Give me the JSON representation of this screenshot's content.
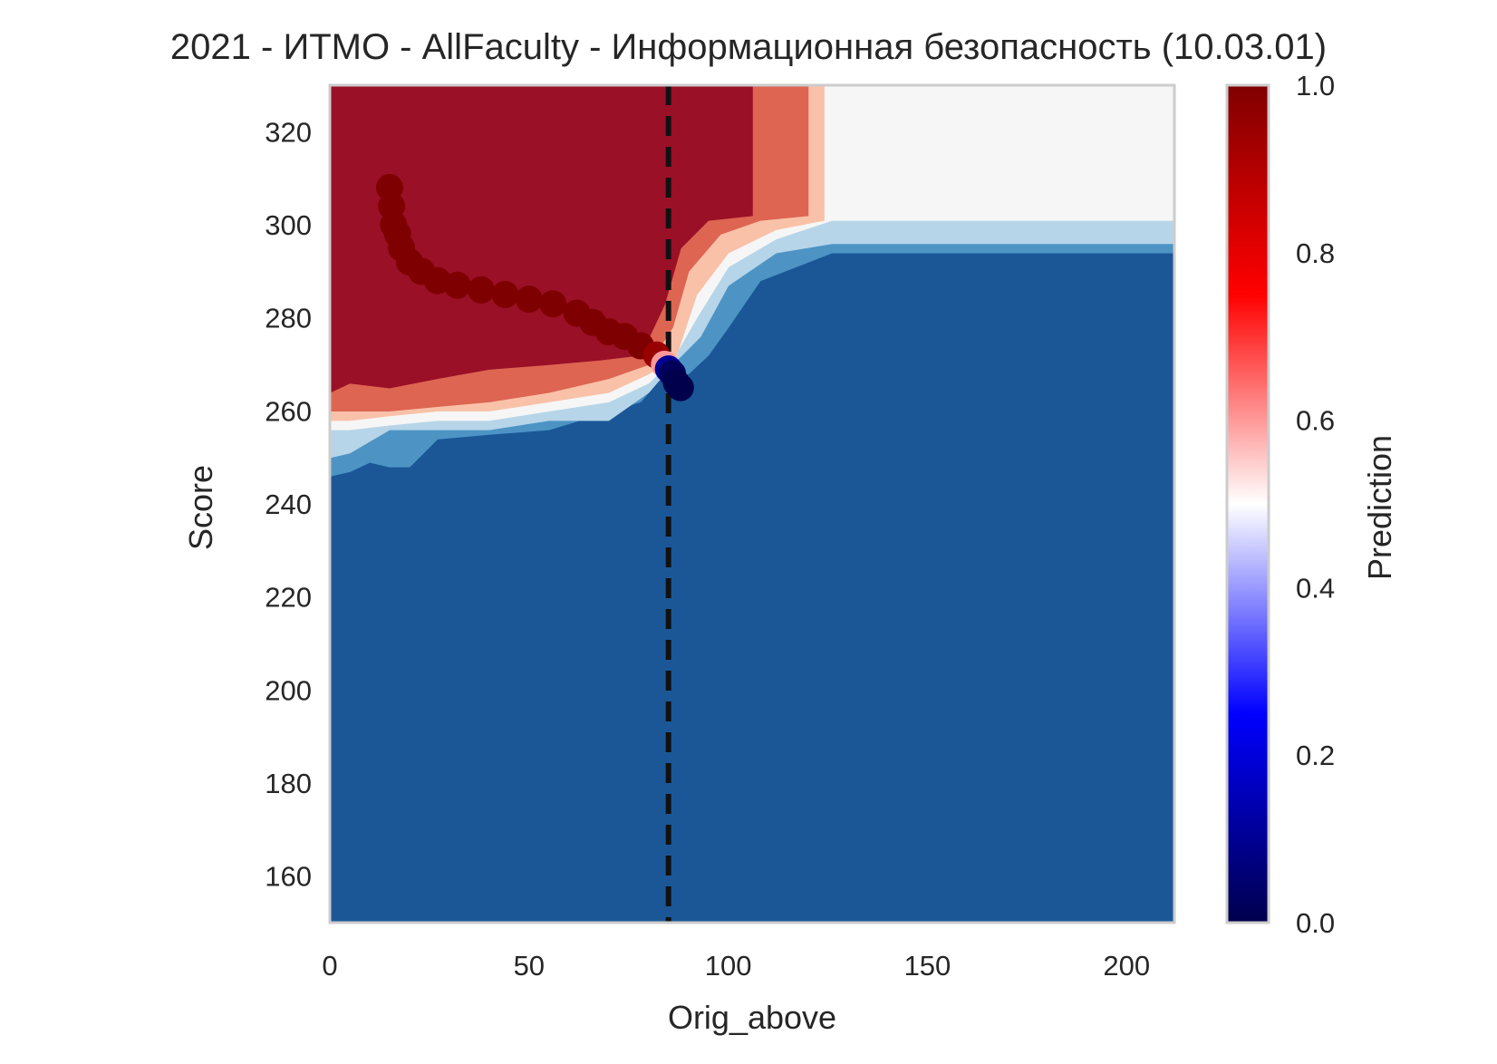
{
  "chart_data": {
    "type": "heatmap",
    "title": "2021 - ИТМО - AllFaculty - Информационная безопасность (10.03.01)",
    "xlabel": "Orig_above",
    "ylabel": "Score",
    "xlim": [
      0,
      212
    ],
    "ylim": [
      150,
      330
    ],
    "x_ticks": [
      0,
      50,
      100,
      150,
      200
    ],
    "y_ticks": [
      160,
      180,
      200,
      220,
      240,
      260,
      280,
      300,
      320
    ],
    "grid": false,
    "colorbar": {
      "label": "Prediction",
      "range": [
        0,
        1
      ],
      "ticks": [
        "0.0",
        "0.2",
        "0.4",
        "0.6",
        "0.8",
        "1.0"
      ],
      "colormap": "seismic",
      "stops": [
        {
          "v": 0.0,
          "color": "#00004c"
        },
        {
          "v": 0.25,
          "color": "#0000ff"
        },
        {
          "v": 0.5,
          "color": "#ffffff"
        },
        {
          "v": 0.75,
          "color": "#ff0000"
        },
        {
          "v": 1.0,
          "color": "#7f0000"
        }
      ]
    },
    "filled_contour_colormap": "RdBu_r",
    "contour_regions": [
      {
        "level": "low",
        "color": "#1b5797",
        "points": [
          [
            0,
            150
          ],
          [
            212,
            150
          ],
          [
            212,
            294
          ],
          [
            126,
            294
          ],
          [
            108,
            288
          ],
          [
            100,
            278
          ],
          [
            95,
            272
          ],
          [
            90,
            268
          ],
          [
            84,
            268
          ],
          [
            78,
            262
          ],
          [
            55,
            256
          ],
          [
            40,
            255
          ],
          [
            27,
            254
          ],
          [
            20,
            248
          ],
          [
            15,
            248
          ],
          [
            10,
            249
          ],
          [
            5,
            247
          ],
          [
            0,
            246
          ]
        ]
      },
      {
        "level": "0.1-0.3",
        "color": "#4d94c5",
        "points": [
          [
            0,
            246
          ],
          [
            5,
            247
          ],
          [
            10,
            249
          ],
          [
            15,
            248
          ],
          [
            20,
            248
          ],
          [
            27,
            254
          ],
          [
            40,
            255
          ],
          [
            55,
            256
          ],
          [
            78,
            262
          ],
          [
            84,
            268
          ],
          [
            90,
            268
          ],
          [
            95,
            272
          ],
          [
            100,
            278
          ],
          [
            108,
            288
          ],
          [
            126,
            294
          ],
          [
            212,
            294
          ],
          [
            212,
            296
          ],
          [
            126,
            296
          ],
          [
            112,
            294
          ],
          [
            100,
            287
          ],
          [
            93,
            276
          ],
          [
            86,
            270
          ],
          [
            80,
            264
          ],
          [
            70,
            258
          ],
          [
            55,
            258
          ],
          [
            40,
            256
          ],
          [
            27,
            256
          ],
          [
            15,
            256
          ],
          [
            5,
            251
          ],
          [
            0,
            250
          ]
        ]
      },
      {
        "level": "0.3-0.45",
        "color": "#b7d5e8",
        "points": [
          [
            0,
            250
          ],
          [
            5,
            251
          ],
          [
            15,
            256
          ],
          [
            27,
            256
          ],
          [
            40,
            256
          ],
          [
            55,
            258
          ],
          [
            70,
            258
          ],
          [
            80,
            264
          ],
          [
            86,
            270
          ],
          [
            93,
            276
          ],
          [
            100,
            287
          ],
          [
            112,
            294
          ],
          [
            126,
            296
          ],
          [
            212,
            296
          ],
          [
            212,
            301
          ],
          [
            126,
            301
          ],
          [
            112,
            297
          ],
          [
            100,
            291
          ],
          [
            92,
            280
          ],
          [
            86,
            271
          ],
          [
            80,
            266
          ],
          [
            70,
            262
          ],
          [
            55,
            260
          ],
          [
            40,
            258
          ],
          [
            27,
            258
          ],
          [
            15,
            257
          ],
          [
            5,
            256
          ],
          [
            0,
            256
          ]
        ]
      },
      {
        "level": "0.45-0.55",
        "color": "#f6f6f6",
        "points": [
          [
            0,
            256
          ],
          [
            5,
            256
          ],
          [
            15,
            257
          ],
          [
            27,
            258
          ],
          [
            40,
            258
          ],
          [
            55,
            260
          ],
          [
            70,
            262
          ],
          [
            80,
            266
          ],
          [
            86,
            271
          ],
          [
            92,
            280
          ],
          [
            100,
            291
          ],
          [
            112,
            297
          ],
          [
            126,
            301
          ],
          [
            212,
            301
          ],
          [
            212,
            330
          ],
          [
            124,
            330
          ],
          [
            124,
            301
          ],
          [
            112,
            299
          ],
          [
            100,
            294
          ],
          [
            92,
            285
          ],
          [
            87,
            272
          ],
          [
            80,
            268
          ],
          [
            70,
            264
          ],
          [
            55,
            262
          ],
          [
            40,
            260
          ],
          [
            27,
            260
          ],
          [
            15,
            259
          ],
          [
            5,
            258
          ],
          [
            0,
            258
          ]
        ]
      },
      {
        "level": "0.55-0.7",
        "color": "#f9c1a8",
        "points": [
          [
            0,
            258
          ],
          [
            5,
            258
          ],
          [
            15,
            259
          ],
          [
            27,
            260
          ],
          [
            40,
            260
          ],
          [
            55,
            262
          ],
          [
            70,
            264
          ],
          [
            80,
            268
          ],
          [
            87,
            272
          ],
          [
            92,
            285
          ],
          [
            100,
            294
          ],
          [
            112,
            299
          ],
          [
            124,
            301
          ],
          [
            124,
            330
          ],
          [
            120,
            330
          ],
          [
            120,
            302
          ],
          [
            108,
            301
          ],
          [
            98,
            298
          ],
          [
            90,
            290
          ],
          [
            86,
            278
          ],
          [
            80,
            270
          ],
          [
            70,
            267
          ],
          [
            55,
            264
          ],
          [
            40,
            262
          ],
          [
            27,
            261
          ],
          [
            15,
            260
          ],
          [
            5,
            260
          ],
          [
            0,
            260
          ]
        ]
      },
      {
        "level": "0.7-0.9",
        "color": "#dd6552",
        "points": [
          [
            0,
            260
          ],
          [
            5,
            260
          ],
          [
            15,
            260
          ],
          [
            27,
            261
          ],
          [
            40,
            262
          ],
          [
            55,
            264
          ],
          [
            70,
            267
          ],
          [
            80,
            270
          ],
          [
            86,
            278
          ],
          [
            90,
            290
          ],
          [
            98,
            298
          ],
          [
            108,
            301
          ],
          [
            120,
            302
          ],
          [
            120,
            330
          ],
          [
            106,
            330
          ],
          [
            106,
            302
          ],
          [
            95,
            301
          ],
          [
            88,
            295
          ],
          [
            84,
            283
          ],
          [
            78,
            272
          ],
          [
            68,
            271
          ],
          [
            55,
            270
          ],
          [
            40,
            269
          ],
          [
            27,
            267
          ],
          [
            15,
            265
          ],
          [
            5,
            266
          ],
          [
            0,
            264
          ]
        ]
      },
      {
        "level": "high",
        "color": "#9a1027",
        "points": [
          [
            0,
            264
          ],
          [
            5,
            266
          ],
          [
            15,
            265
          ],
          [
            27,
            267
          ],
          [
            40,
            269
          ],
          [
            55,
            270
          ],
          [
            68,
            271
          ],
          [
            78,
            272
          ],
          [
            84,
            283
          ],
          [
            88,
            295
          ],
          [
            95,
            301
          ],
          [
            106,
            302
          ],
          [
            106,
            330
          ],
          [
            0,
            330
          ]
        ]
      }
    ],
    "reference_line": {
      "x": 85,
      "style": "dashed",
      "color": "#111111"
    },
    "trajectory": {
      "x": [
        15,
        15.5,
        16,
        17,
        18,
        20,
        23,
        27,
        32,
        38,
        44,
        50,
        56,
        62,
        66,
        70,
        74,
        78,
        82,
        84,
        85,
        86,
        87,
        88
      ],
      "y": [
        308,
        304,
        300,
        298,
        295,
        292,
        290,
        288,
        287,
        286,
        285,
        284,
        283,
        281,
        279,
        277,
        276,
        274,
        272,
        270,
        269,
        268,
        266,
        265
      ],
      "prediction": [
        1,
        1,
        1,
        1,
        1,
        1,
        1,
        1,
        1,
        1,
        1,
        1,
        1,
        1,
        1,
        1,
        1,
        1,
        0.95,
        0.6,
        0.1,
        0.02,
        0,
        0
      ]
    }
  }
}
